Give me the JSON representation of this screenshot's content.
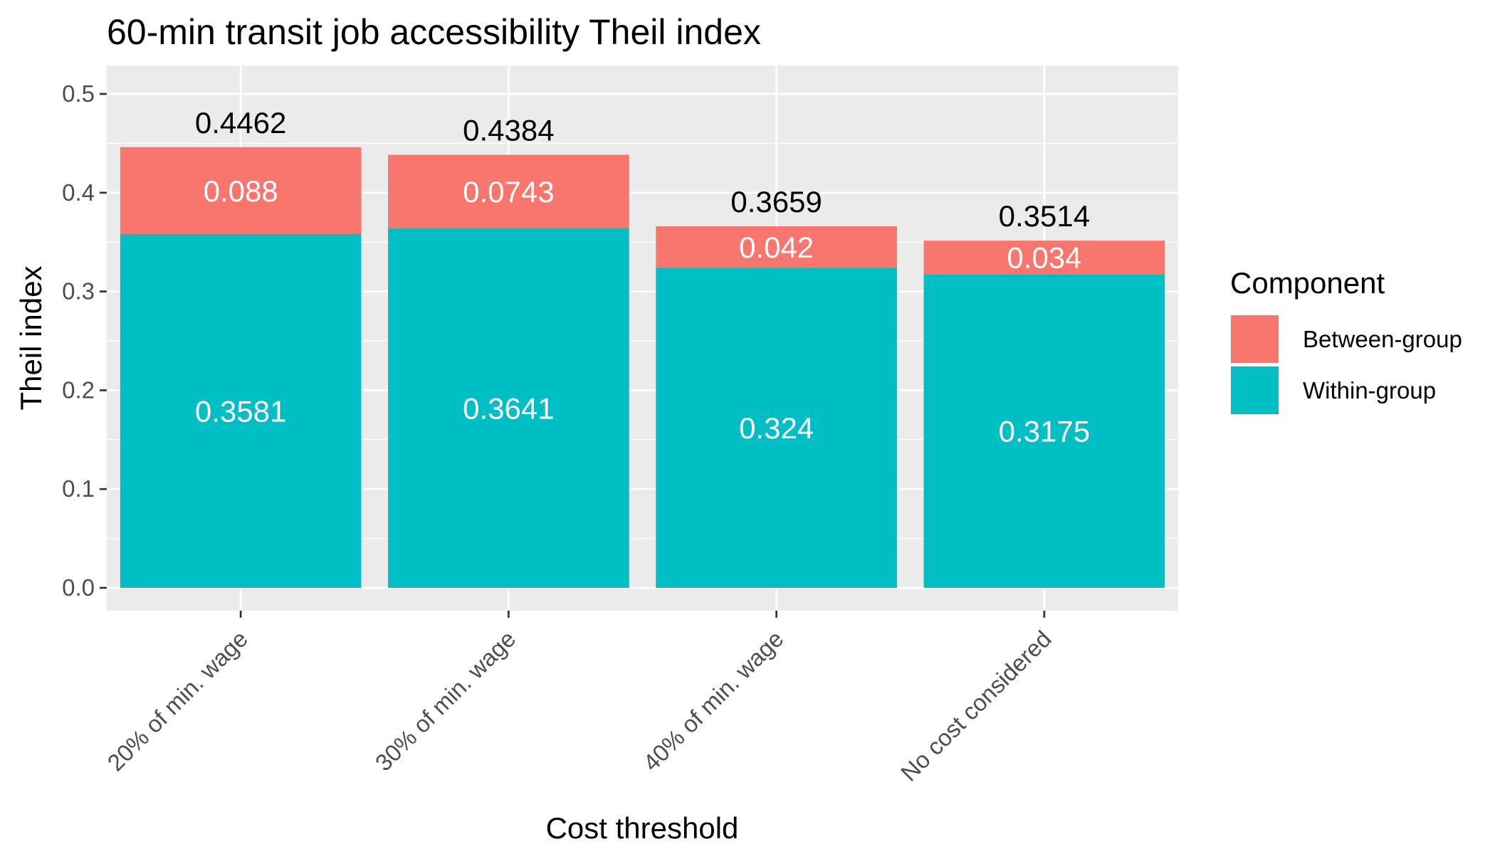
{
  "chart_data": {
    "type": "bar",
    "stacked": true,
    "title": "60-min transit job accessibility Theil index",
    "xlabel": "Cost threshold",
    "ylabel": "Theil index",
    "categories": [
      "20% of min. wage",
      "30% of min. wage",
      "40% of min. wage",
      "No cost considered"
    ],
    "series": [
      {
        "name": "Within-group",
        "color": "#00BFC4",
        "values": [
          0.3581,
          0.3641,
          0.324,
          0.3175
        ],
        "labels": [
          "0.3581",
          "0.3641",
          "0.324",
          "0.3175"
        ]
      },
      {
        "name": "Between-group",
        "color": "#F8766D",
        "values": [
          0.088,
          0.0743,
          0.042,
          0.034
        ],
        "labels": [
          "0.088",
          "0.0743",
          "0.042",
          "0.034"
        ]
      }
    ],
    "totals": [
      0.4462,
      0.4384,
      0.3659,
      0.3514
    ],
    "total_labels": [
      "0.4462",
      "0.4384",
      "0.3659",
      "0.3514"
    ],
    "ylim": [
      0,
      0.5
    ],
    "yticks": [
      "0.0",
      "0.1",
      "0.2",
      "0.3",
      "0.4",
      "0.5"
    ],
    "grid": true,
    "legend": {
      "title": "Component",
      "position": "right",
      "entries": [
        {
          "label": "Between-group",
          "color": "#F8766D"
        },
        {
          "label": "Within-group",
          "color": "#00BFC4"
        }
      ]
    },
    "panel_background": "#EBEBEB",
    "grid_color": "#FFFFFF"
  }
}
